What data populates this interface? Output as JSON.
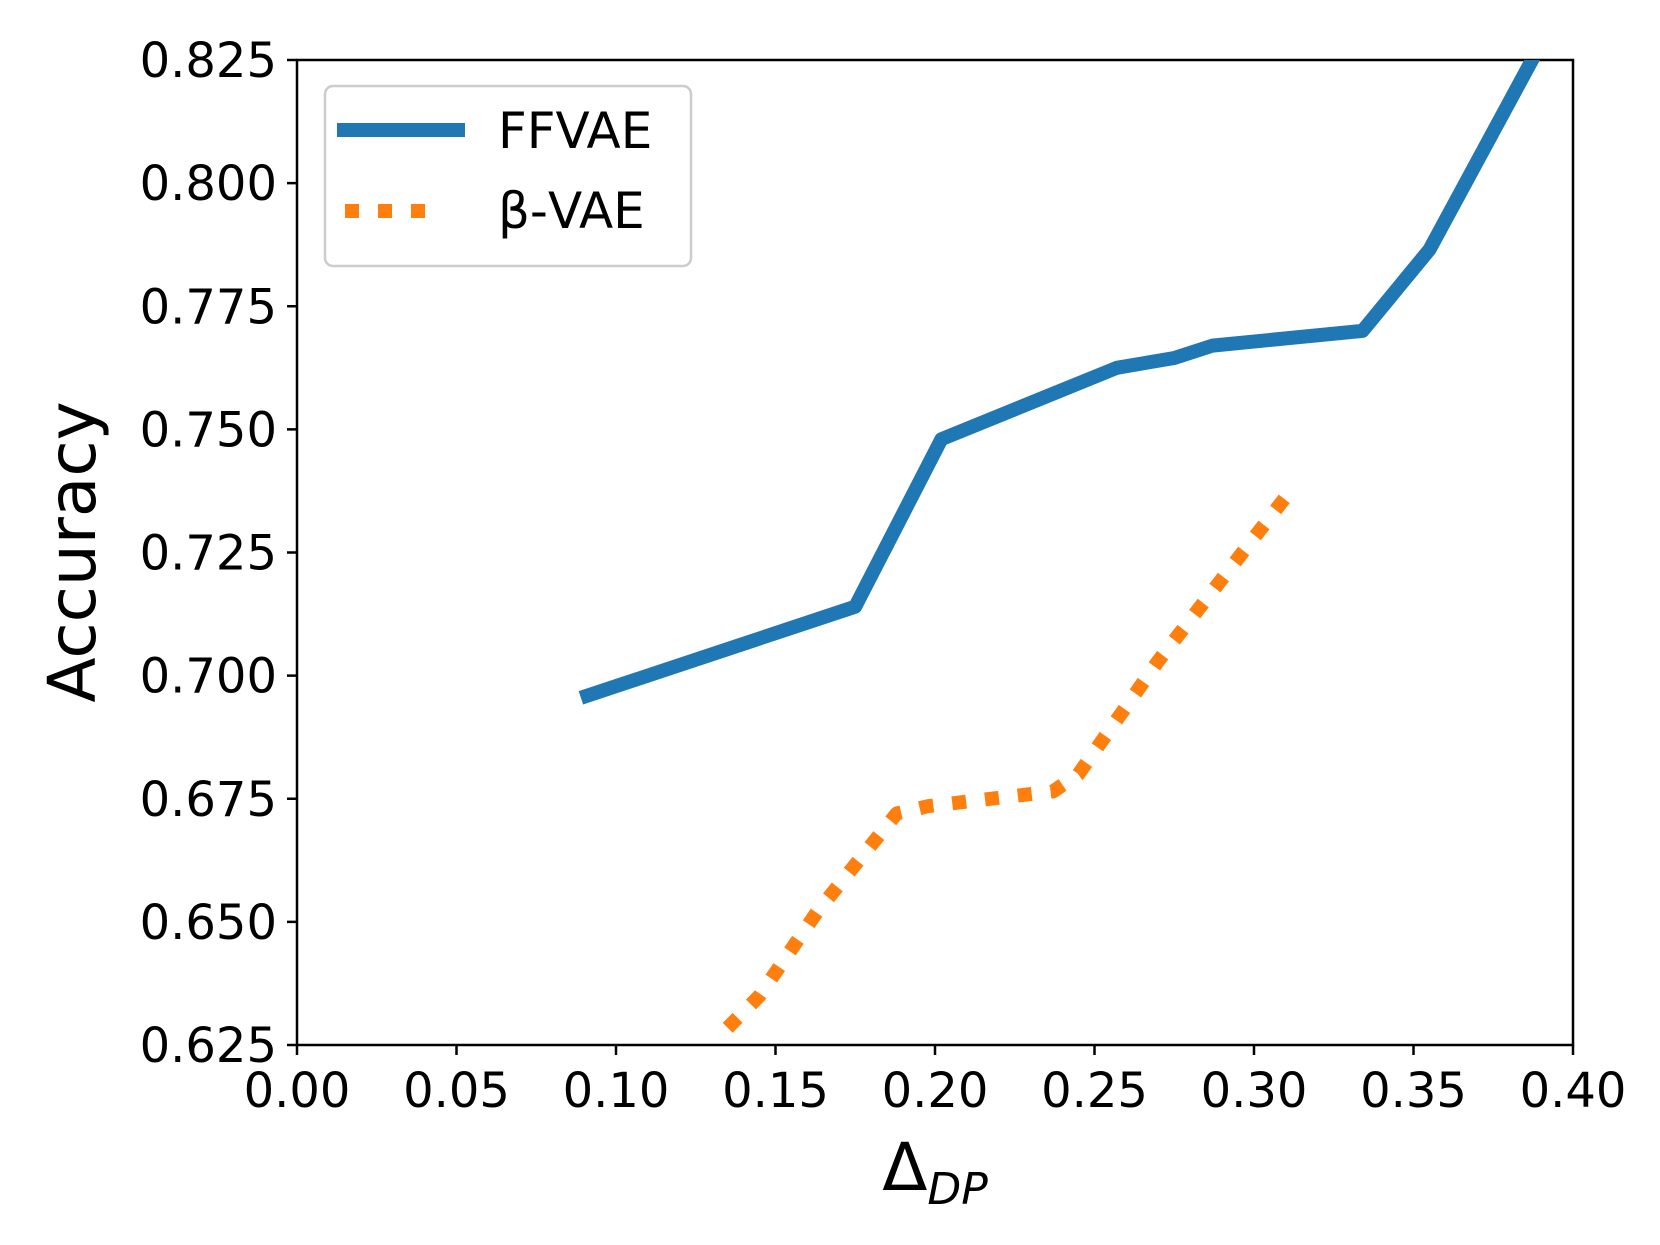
{
  "chart_data": {
    "type": "line",
    "title": "",
    "xlabel": "Δ",
    "xlabel_subscript": "DP",
    "ylabel": "Accuracy",
    "xlim": [
      0.0,
      0.4
    ],
    "ylim": [
      0.625,
      0.825
    ],
    "xticks": [
      "0.00",
      "0.05",
      "0.10",
      "0.15",
      "0.20",
      "0.25",
      "0.30",
      "0.35",
      "0.40"
    ],
    "yticks": [
      "0.625",
      "0.650",
      "0.675",
      "0.700",
      "0.725",
      "0.750",
      "0.775",
      "0.800",
      "0.825"
    ],
    "grid": false,
    "legend_position": "top-left",
    "series": [
      {
        "name": "FFVAE",
        "style": "solid",
        "color": "#1f77b4",
        "points": [
          [
            0.089,
            0.6955
          ],
          [
            0.175,
            0.714
          ],
          [
            0.202,
            0.748
          ],
          [
            0.257,
            0.7625
          ],
          [
            0.275,
            0.7645
          ],
          [
            0.287,
            0.767
          ],
          [
            0.334,
            0.77
          ],
          [
            0.355,
            0.7865
          ],
          [
            0.388,
            0.826
          ]
        ]
      },
      {
        "name": "β-VAE",
        "style": "dotted",
        "color": "#ff7f0e",
        "points": [
          [
            0.135,
            0.6285
          ],
          [
            0.145,
            0.635
          ],
          [
            0.163,
            0.652
          ],
          [
            0.188,
            0.672
          ],
          [
            0.198,
            0.6735
          ],
          [
            0.237,
            0.6765
          ],
          [
            0.245,
            0.68
          ],
          [
            0.27,
            0.703
          ],
          [
            0.312,
            0.738
          ]
        ]
      }
    ]
  }
}
